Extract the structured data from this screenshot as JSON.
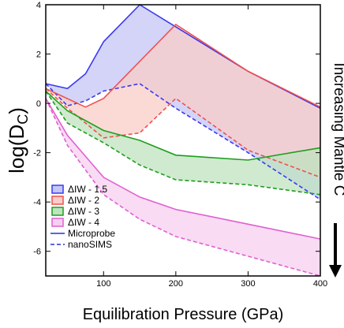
{
  "chart_data": {
    "type": "area",
    "xlabel": "Equilibration Pressure (GPa)",
    "ylabel_main": "log(D",
    "ylabel_sub": "C",
    "ylabel_close": ")",
    "right_annotation": "Increasing Mantle C",
    "xlim": [
      20,
      400
    ],
    "ylim": [
      -7,
      4
    ],
    "x_ticks": [
      100,
      200,
      300,
      400
    ],
    "x_tick_labels": [
      "100",
      "200",
      "300",
      "400"
    ],
    "y_ticks": [
      -6,
      -4,
      -2,
      0,
      2,
      4
    ],
    "y_tick_labels": [
      "-6",
      "-4",
      "-2",
      "0",
      "2",
      "4"
    ],
    "grid": false,
    "legend_position": "lower-left",
    "series": [
      {
        "name": "ΔIW - 1.5",
        "color": "#3a3af0",
        "fill": "#c4c6f5",
        "microprobe": {
          "x": [
            20,
            50,
            75,
            100,
            150,
            200,
            300,
            400
          ],
          "y": [
            0.8,
            0.6,
            1.2,
            2.5,
            4.0,
            3.1,
            1.3,
            -0.2
          ]
        },
        "nanosims": {
          "x": [
            20,
            50,
            75,
            100,
            150,
            200,
            300,
            400
          ],
          "y": [
            0.8,
            -0.1,
            0.1,
            0.5,
            0.8,
            -0.2,
            -2.0,
            -3.9
          ]
        }
      },
      {
        "name": "ΔIW - 2",
        "color": "#f05050",
        "fill": "#f9cdc8",
        "microprobe": {
          "x": [
            20,
            75,
            100,
            200,
            300,
            400
          ],
          "y": [
            0.6,
            -0.15,
            0.2,
            3.2,
            1.3,
            -0.15
          ]
        },
        "nanosims": {
          "x": [
            20,
            50,
            100,
            150,
            200,
            300,
            400
          ],
          "y": [
            0.6,
            -0.2,
            -1.4,
            -1.2,
            0.2,
            -1.9,
            -3.0
          ]
        }
      },
      {
        "name": "ΔIW - 3",
        "color": "#1e9e1e",
        "fill": "#bfe3bf",
        "microprobe": {
          "x": [
            20,
            50,
            100,
            150,
            200,
            300,
            400
          ],
          "y": [
            0.5,
            -0.3,
            -1.1,
            -1.5,
            -2.1,
            -2.3,
            -1.8
          ]
        },
        "nanosims": {
          "x": [
            20,
            50,
            100,
            150,
            200,
            300,
            400
          ],
          "y": [
            0.5,
            -0.8,
            -1.6,
            -2.5,
            -3.1,
            -3.3,
            -3.7
          ]
        }
      },
      {
        "name": "ΔIW - 4",
        "color": "#e060d0",
        "fill": "#f7cff0",
        "microprobe": {
          "x": [
            20,
            50,
            100,
            150,
            200,
            300,
            400
          ],
          "y": [
            0.2,
            -1.3,
            -3.0,
            -3.8,
            -4.3,
            -4.9,
            -5.5
          ]
        },
        "nanosims": {
          "x": [
            20,
            50,
            100,
            150,
            200,
            300,
            400
          ],
          "y": [
            0.2,
            -1.7,
            -3.7,
            -4.7,
            -5.4,
            -6.2,
            -7.0
          ]
        }
      }
    ],
    "line_styles": [
      {
        "name": "Microprobe",
        "style": "solid"
      },
      {
        "name": "nanoSIMS",
        "style": "dashed"
      }
    ]
  }
}
